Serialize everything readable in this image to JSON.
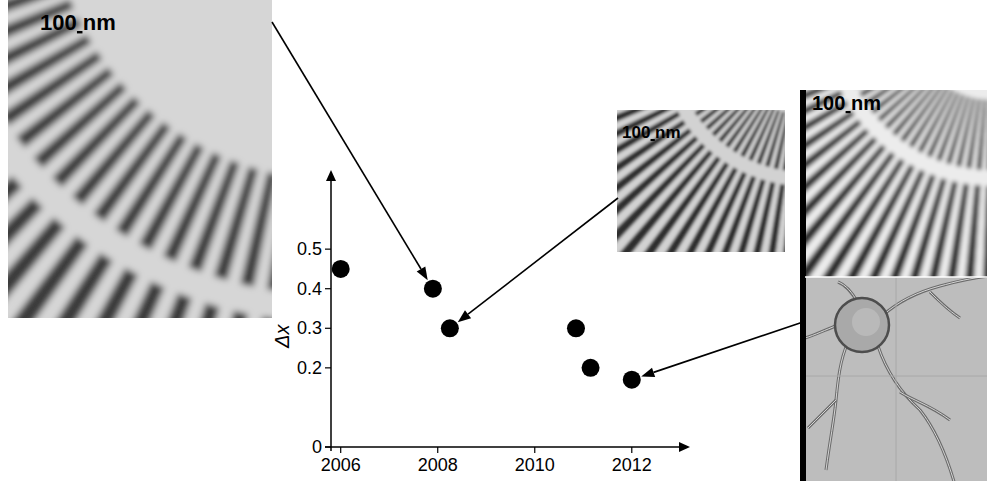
{
  "chart_data": {
    "type": "scatter",
    "x": [
      2006,
      2007.9,
      2008.25,
      2010.85,
      2011.15,
      2012
    ],
    "values": [
      0.45,
      0.4,
      0.3,
      0.3,
      0.2,
      0.17
    ],
    "color": "#000000",
    "marker": "circle",
    "xlim": [
      2005.8,
      2013.2
    ],
    "ylim": [
      0,
      0.7
    ],
    "xticks": [
      2006,
      2008,
      2010,
      2012
    ],
    "yticks": [
      0,
      0.2,
      0.3,
      0.4,
      0.5
    ],
    "ylabel": "Δx",
    "annotations": [
      "100 nm",
      "100 nm",
      "100 nm"
    ]
  }
}
